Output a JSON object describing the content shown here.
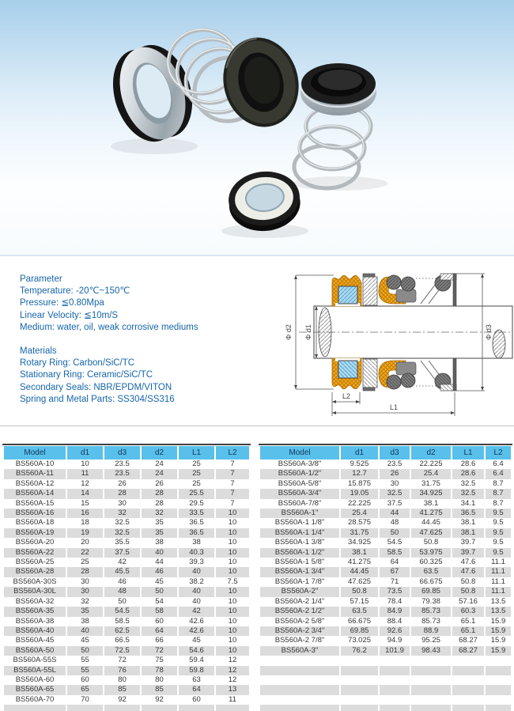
{
  "parameters": {
    "title": "Parameter",
    "lines": [
      "Temperature: -20℃~150℃",
      "Pressure: ≦0.80Mpa",
      "Linear Velocity: ≦10m/S",
      "Medium: water, oil, weak corrosive mediums"
    ],
    "materials_title": "Materials",
    "materials_lines": [
      "Rotary Ring: Carbon/SiC/TC",
      "Stationary Ring: Ceramic/SiC/TC",
      "Secondary Seals: NBR/EPDM/VITON",
      "Spring and Metal Parts: SS304/SS316"
    ]
  },
  "diagram": {
    "labels": {
      "d1": "Φ d1",
      "d2": "Φ d2",
      "d3": "Φ d3",
      "L1": "L1",
      "L2": "L2"
    }
  },
  "tables": {
    "headers": [
      "Model",
      "d1",
      "d3",
      "d2",
      "L1",
      "L2"
    ],
    "metric": {
      "rows": [
        [
          "BS560A-10",
          "10",
          "23.5",
          "24",
          "25",
          "7"
        ],
        [
          "BS560A-11",
          "11",
          "23.5",
          "24",
          "25",
          "7"
        ],
        [
          "BS560A-12",
          "12",
          "26",
          "26",
          "25",
          "7"
        ],
        [
          "BS560A-14",
          "14",
          "28",
          "28",
          "25.5",
          "7"
        ],
        [
          "BS560A-15",
          "15",
          "30",
          "28",
          "29.5",
          "7"
        ],
        [
          "BS560A-16",
          "16",
          "32",
          "32",
          "33.5",
          "10"
        ],
        [
          "BS560A-18",
          "18",
          "32.5",
          "35",
          "36.5",
          "10"
        ],
        [
          "BS560A-19",
          "19",
          "32.5",
          "35",
          "36.5",
          "10"
        ],
        [
          "BS560A-20",
          "20",
          "35.5",
          "38",
          "38",
          "10"
        ],
        [
          "BS560A-22",
          "22",
          "37.5",
          "40",
          "40.3",
          "10"
        ],
        [
          "BS560A-25",
          "25",
          "42",
          "44",
          "39.3",
          "10"
        ],
        [
          "BS560A-28",
          "28",
          "45.5",
          "46",
          "40",
          "10"
        ],
        [
          "BS560A-30S",
          "30",
          "46",
          "45",
          "38.2",
          "7.5"
        ],
        [
          "BS560A-30L",
          "30",
          "48",
          "50",
          "40",
          "10"
        ],
        [
          "BS560A-32",
          "32",
          "50",
          "54",
          "40",
          "10"
        ],
        [
          "BS560A-35",
          "35",
          "54.5",
          "58",
          "42",
          "10"
        ],
        [
          "BS560A-38",
          "38",
          "58.5",
          "60",
          "42.6",
          "10"
        ],
        [
          "BS560A-40",
          "40",
          "62.5",
          "64",
          "42.6",
          "10"
        ],
        [
          "BS560A-45",
          "45",
          "66.5",
          "66",
          "45",
          "10"
        ],
        [
          "BS560A-50",
          "50",
          "72.5",
          "72",
          "54.6",
          "10"
        ],
        [
          "BS560A-55S",
          "55",
          "72",
          "75",
          "59.4",
          "12"
        ],
        [
          "BS560A-55L",
          "55",
          "76",
          "78",
          "59.8",
          "12"
        ],
        [
          "BS560A-60",
          "60",
          "80",
          "80",
          "63",
          "12"
        ],
        [
          "BS560A-65",
          "65",
          "85",
          "85",
          "64",
          "13"
        ],
        [
          "BS560A-70",
          "70",
          "92",
          "92",
          "60",
          "11"
        ],
        [
          "",
          "",
          "",
          "",
          "",
          ""
        ]
      ]
    },
    "inch": {
      "rows": [
        [
          "BS560A-3/8\"",
          "9.525",
          "23.5",
          "22.225",
          "28.6",
          "6.4"
        ],
        [
          "BS560A-1/2\"",
          "12.7",
          "26",
          "25.4",
          "28.6",
          "6.4"
        ],
        [
          "BS560A-5/8\"",
          "15.875",
          "30",
          "31.75",
          "32.5",
          "8.7"
        ],
        [
          "BS560A-3/4\"",
          "19.05",
          "32.5",
          "34.925",
          "32.5",
          "8.7"
        ],
        [
          "BS560A-7/8\"",
          "22.225",
          "37.5",
          "38.1",
          "34.1",
          "8.7"
        ],
        [
          "BS560A-1\"",
          "25.4",
          "44",
          "41.275",
          "36.5",
          "9.5"
        ],
        [
          "BS560A-1 1/8\"",
          "28.575",
          "48",
          "44.45",
          "38.1",
          "9.5"
        ],
        [
          "BS560A-1 1/4\"",
          "31.75",
          "50",
          "47.625",
          "38.1",
          "9.5"
        ],
        [
          "BS560A-1 3/8\"",
          "34.925",
          "54.5",
          "50.8",
          "39.7",
          "9.5"
        ],
        [
          "BS560A-1 1/2\"",
          "38.1",
          "58.5",
          "53.975",
          "39.7",
          "9.5"
        ],
        [
          "BS560A-1 5/8\"",
          "41.275",
          "64",
          "60.325",
          "47.6",
          "11.1"
        ],
        [
          "BS560A-1 3/4\"",
          "44.45",
          "67",
          "63.5",
          "47.6",
          "11.1"
        ],
        [
          "BS560A-1 7/8\"",
          "47.625",
          "71",
          "66.675",
          "50.8",
          "11.1"
        ],
        [
          "BS560A-2\"",
          "50.8",
          "73.5",
          "69.85",
          "50.8",
          "11.1"
        ],
        [
          "BS560A-2 1/4\"",
          "57.15",
          "78.4",
          "79.38",
          "57.16",
          "13.5"
        ],
        [
          "BS560A-2 1/2\"",
          "63.5",
          "84.9",
          "85.73",
          "60.3",
          "13.5"
        ],
        [
          "BS560A-2 5/8\"",
          "66.675",
          "88.4",
          "85.73",
          "65.1",
          "15.9"
        ],
        [
          "BS560A-2 3/4\"",
          "69.85",
          "92.6",
          "88.9",
          "65.1",
          "15.9"
        ],
        [
          "BS560A-2 7/8\"",
          "73.025",
          "94.9",
          "95.25",
          "68.27",
          "15.9"
        ],
        [
          "BS560A-3\"",
          "76.2",
          "101.9",
          "98.43",
          "68.27",
          "15.9"
        ],
        [
          "",
          "",
          "",
          "",
          "",
          ""
        ],
        [
          "",
          "",
          "",
          "",
          "",
          ""
        ],
        [
          "",
          "",
          "",
          "",
          "",
          ""
        ],
        [
          "",
          "",
          "",
          "",
          "",
          ""
        ],
        [
          "",
          "",
          "",
          "",
          "",
          ""
        ],
        [
          "",
          "",
          "",
          "",
          "",
          ""
        ]
      ]
    }
  },
  "colors": {
    "header_bg": "#58c0eb",
    "header_text": "#14375c",
    "row_alt": "#dcdcdc",
    "param_text": "#1666ab",
    "table_top_border": "#3f3f3f",
    "photo_bg_top": "#a7d0ea",
    "diagram_orange": "#f5a91f",
    "diagram_blue": "#aadcf5"
  }
}
